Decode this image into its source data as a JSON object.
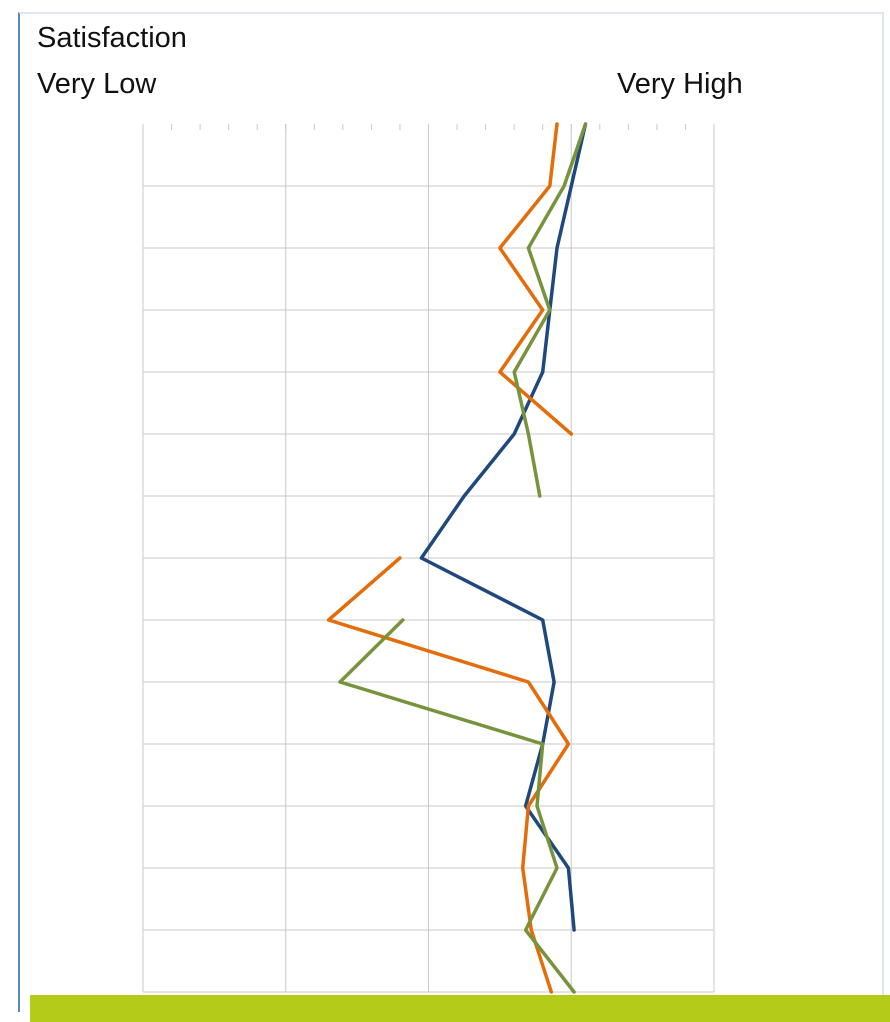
{
  "labels": {
    "title": "Satisfaction",
    "low": "Very Low",
    "high": "Very High"
  },
  "colors": {
    "bottom_bar": "#b5cb1a",
    "grid": "#c8c8c8",
    "frame_accent": "#5b87c5"
  },
  "chart_data": {
    "type": "line",
    "orientation": "horizontal-value-axis",
    "xlim": [
      0,
      4
    ],
    "grid": true,
    "rows": 11,
    "series": [
      {
        "color": "#1f497d",
        "values": [
          3.1,
          3.0,
          2.9,
          2.85,
          2.8,
          2.6,
          2.25,
          1.95,
          2.8,
          2.88,
          2.8,
          2.68,
          2.98,
          3.02
        ]
      },
      {
        "color": "#e46c0a",
        "values": [
          2.9,
          2.85,
          2.5,
          2.8,
          2.5,
          3.0,
          null,
          1.8,
          1.3,
          2.7,
          2.98,
          2.7,
          2.66,
          2.72,
          2.86
        ]
      },
      {
        "color": "#77933c",
        "values": [
          3.1,
          2.95,
          2.7,
          2.85,
          2.6,
          2.7,
          2.78,
          null,
          1.82,
          1.38,
          2.8,
          2.76,
          2.9,
          2.68,
          3.02,
          3.02
        ]
      }
    ]
  }
}
